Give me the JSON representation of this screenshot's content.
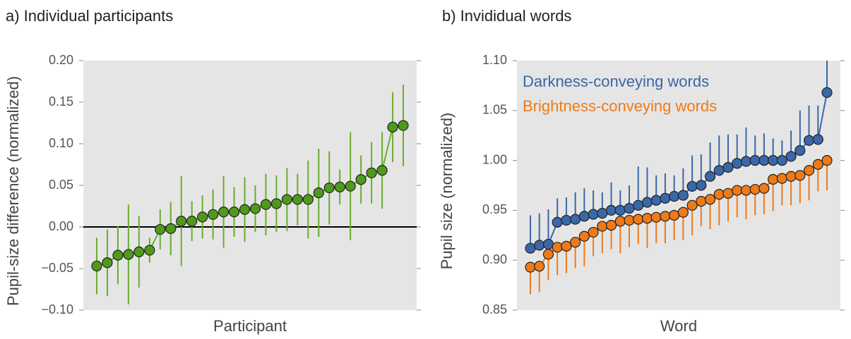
{
  "chart_data": [
    {
      "type": "line",
      "title": "a) Individual participants",
      "xlabel": "Participant",
      "ylabel": "Pupil-size difference (normalized)",
      "ylim": [
        -0.1,
        0.2
      ],
      "yticks": [
        {
          "value": -0.1,
          "label": "−0.10"
        },
        {
          "value": -0.05,
          "label": "−0.05"
        },
        {
          "value": 0,
          "label": "0.00"
        },
        0.05,
        {
          "value": 0.1,
          "label": "0.10"
        },
        0.15,
        {
          "value": 0.2,
          "label": "0.20"
        }
      ],
      "reference_line": 0,
      "series": [
        {
          "color": "#4f9a1b",
          "line_color": "#6aad2c",
          "error_direction": "both",
          "values": [
            -0.047,
            -0.043,
            -0.034,
            -0.033,
            -0.03,
            -0.028,
            -0.003,
            -0.002,
            0.007,
            0.007,
            0.012,
            0.015,
            0.018,
            0.018,
            0.021,
            0.022,
            0.027,
            0.028,
            0.033,
            0.033,
            0.033,
            0.041,
            0.047,
            0.048,
            0.049,
            0.057,
            0.065,
            0.068,
            0.12,
            0.122
          ],
          "errors": [
            0.034,
            0.04,
            0.035,
            0.06,
            0.043,
            0.015,
            0.024,
            0.032,
            0.054,
            0.024,
            0.026,
            0.03,
            0.043,
            0.03,
            0.039,
            0.028,
            0.037,
            0.034,
            0.038,
            0.031,
            0.047,
            0.053,
            0.044,
            0.021,
            0.065,
            0.029,
            0.037,
            0.046,
            0.042,
            0.049
          ]
        }
      ]
    },
    {
      "type": "line",
      "title": "b) Invididual words",
      "xlabel": "Word",
      "ylabel": "Pupil size (normalized)",
      "ylim": [
        0.85,
        1.1
      ],
      "yticks": [
        0.85,
        {
          "value": 0.9,
          "label": "0.90"
        },
        0.95,
        {
          "value": 1.0,
          "label": "1.00"
        },
        1.05,
        {
          "value": 1.1,
          "label": "1.10"
        }
      ],
      "series": [
        {
          "name": "Darkness-conveying words",
          "color": "#3a67a8",
          "line_color": "#3a67a8",
          "error_direction": "up",
          "values": [
            0.912,
            0.915,
            0.916,
            0.938,
            0.94,
            0.941,
            0.944,
            0.946,
            0.947,
            0.95,
            0.95,
            0.952,
            0.955,
            0.958,
            0.96,
            0.962,
            0.964,
            0.965,
            0.974,
            0.975,
            0.984,
            0.99,
            0.993,
            0.997,
            0.999,
            1.0,
            1.0,
            1.0,
            1.0,
            1.004,
            1.01,
            1.02,
            1.021,
            1.068
          ],
          "errors": [
            0.033,
            0.032,
            0.035,
            0.024,
            0.023,
            0.027,
            0.028,
            0.024,
            0.021,
            0.028,
            0.02,
            0.023,
            0.039,
            0.035,
            0.025,
            0.025,
            0.021,
            0.027,
            0.031,
            0.031,
            0.034,
            0.035,
            0.033,
            0.029,
            0.034,
            0.025,
            0.027,
            0.022,
            0.02,
            0.026,
            0.04,
            0.035,
            0.034,
            0.052
          ]
        },
        {
          "name": "Brightness-conveying words",
          "color": "#ee7a1a",
          "line_color": "#ee7a1a",
          "error_direction": "down",
          "values": [
            0.893,
            0.894,
            0.906,
            0.913,
            0.914,
            0.918,
            0.924,
            0.928,
            0.934,
            0.935,
            0.939,
            0.94,
            0.941,
            0.942,
            0.943,
            0.944,
            0.945,
            0.948,
            0.955,
            0.959,
            0.961,
            0.966,
            0.967,
            0.97,
            0.97,
            0.971,
            0.972,
            0.981,
            0.982,
            0.984,
            0.985,
            0.99,
            0.996,
            1.0
          ],
          "errors": [
            0.027,
            0.026,
            0.026,
            0.028,
            0.027,
            0.026,
            0.03,
            0.024,
            0.027,
            0.024,
            0.032,
            0.027,
            0.025,
            0.03,
            0.026,
            0.027,
            0.025,
            0.028,
            0.03,
            0.025,
            0.03,
            0.031,
            0.028,
            0.027,
            0.029,
            0.026,
            0.026,
            0.032,
            0.027,
            0.029,
            0.028,
            0.03,
            0.027,
            0.03
          ]
        }
      ]
    }
  ]
}
